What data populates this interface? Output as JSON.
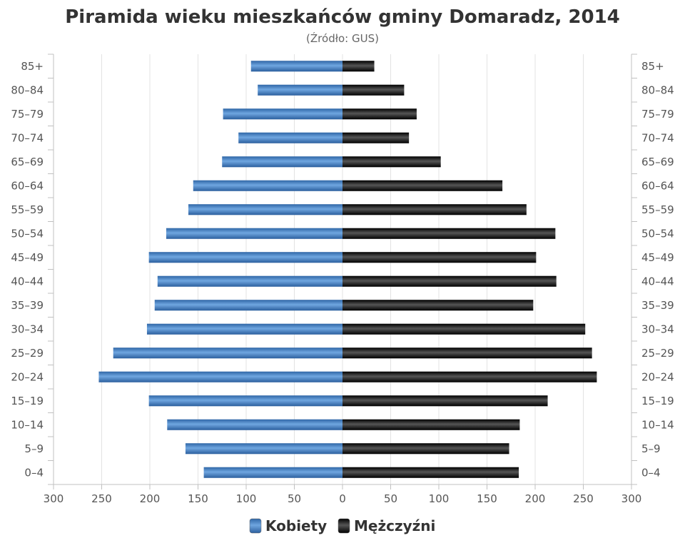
{
  "chart_data": {
    "type": "bar",
    "orientation": "horizontal-population-pyramid",
    "title": "Piramida wieku mieszkańców gminy Domaradz, 2014",
    "subtitle": "(Źródło: GUS)",
    "categories": [
      "85+",
      "80–84",
      "75–79",
      "70–74",
      "65–69",
      "60–64",
      "55–59",
      "50–54",
      "45–49",
      "40–44",
      "35–39",
      "30–34",
      "25–29",
      "20–24",
      "15–19",
      "10–14",
      "5–9",
      "0–4"
    ],
    "series": [
      {
        "name": "Kobiety",
        "side": "left",
        "color": "#3d7dc4",
        "values": [
          95,
          88,
          124,
          108,
          125,
          155,
          160,
          183,
          201,
          192,
          195,
          203,
          238,
          253,
          201,
          182,
          163,
          144
        ]
      },
      {
        "name": "Mężczyźni",
        "side": "right",
        "color": "#1a1a1a",
        "values": [
          33,
          64,
          77,
          69,
          102,
          166,
          191,
          221,
          201,
          222,
          198,
          252,
          259,
          264,
          213,
          184,
          173,
          183
        ]
      }
    ],
    "x_ticks": [
      300,
      250,
      200,
      150,
      100,
      50,
      0,
      50,
      100,
      150,
      200,
      250,
      300
    ],
    "xlim": [
      -300,
      300
    ],
    "grid": "vertical",
    "legend": "bottom-center"
  }
}
